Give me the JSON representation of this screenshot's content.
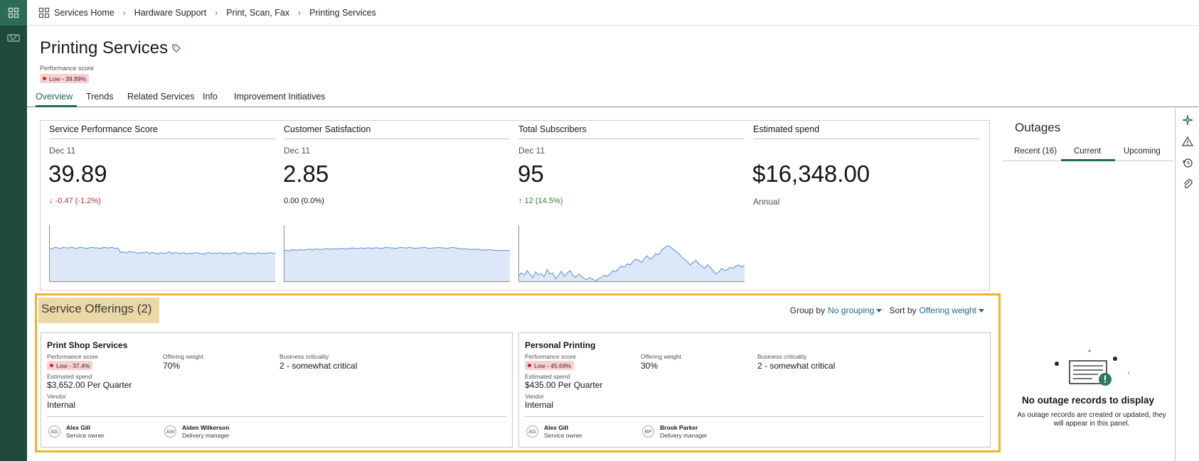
{
  "breadcrumb": {
    "items": [
      "Services Home",
      "Hardware Support",
      "Print, Scan, Fax",
      "Printing Services"
    ]
  },
  "header": {
    "title": "Printing Services",
    "performance_label": "Performance score",
    "performance_badge": "Low - 39.89%"
  },
  "tabs": [
    "Overview",
    "Trends",
    "Related Services",
    "Info",
    "Improvement Initiatives"
  ],
  "metrics": [
    {
      "title": "Service Performance Score",
      "date": "Dec 11",
      "value": "39.89",
      "delta": "↓ -0.47 (-1.2%)"
    },
    {
      "title": "Customer Satisfaction",
      "date": "Dec 11",
      "value": "2.85",
      "delta": "0.00 (0.0%)"
    },
    {
      "title": "Total Subscribers",
      "date": "Dec 11",
      "value": "95",
      "delta": "↑ 12 (14.5%)"
    },
    {
      "title": "Estimated spend",
      "date": "",
      "value": "$16,348.00",
      "delta": "Annual"
    }
  ],
  "offerings": {
    "title": "Service Offerings (2)",
    "group_by_label": "Group by",
    "group_by_value": "No grouping",
    "sort_by_label": "Sort by",
    "sort_by_value": "Offering weight",
    "cards": [
      {
        "name": "Print Shop Services",
        "perf_label": "Performance score",
        "perf_badge": "Low - 37.4%",
        "weight_label": "Offering weight",
        "weight": "70%",
        "criticality_label": "Business criticality",
        "criticality": "2 - somewhat critical",
        "spend_label": "Estimated spend",
        "spend": "$3,652.00 Per Quarter",
        "vendor_label": "Vendor",
        "vendor": "Internal",
        "people": [
          {
            "initials": "AG",
            "name": "Alex Gill",
            "role": "Service owner"
          },
          {
            "initials": "AW",
            "name": "Aiden Wilkerson",
            "role": "Delivery manager"
          }
        ]
      },
      {
        "name": "Personal Printing",
        "perf_label": "Performance score",
        "perf_badge": "Low - 45.69%",
        "weight_label": "Offering weight",
        "weight": "30%",
        "criticality_label": "Business criticality",
        "criticality": "2 - somewhat critical",
        "spend_label": "Estimated spend",
        "spend": "$435.00 Per Quarter",
        "vendor_label": "Vendor",
        "vendor": "Internal",
        "people": [
          {
            "initials": "AG",
            "name": "Alex Gill",
            "role": "Service owner"
          },
          {
            "initials": "BP",
            "name": "Brook Parker",
            "role": "Delivery manager"
          }
        ]
      }
    ]
  },
  "outages": {
    "title": "Outages",
    "tabs": [
      "Recent (16)",
      "Current",
      "Upcoming"
    ],
    "active_tab": "Current",
    "empty_title": "No outage records to display",
    "empty_desc": "As outage records are created or updated, they will appear in this panel."
  },
  "colors": {
    "rail": "#1f4a3b",
    "accent": "#1f6b52",
    "link": "#1f6b8a",
    "badge_bg": "#f6d2d2",
    "highlight_border": "#f0b429",
    "spark_fill": "#dce8f7",
    "spark_line": "#5b8fd6"
  },
  "sparklines": [
    [
      60,
      58,
      61,
      60,
      59,
      61,
      60,
      60,
      62,
      59,
      60,
      61,
      60,
      59,
      60,
      61,
      60,
      60,
      59,
      61,
      60,
      60,
      61,
      59,
      60,
      52,
      53,
      51,
      54,
      52,
      53,
      50,
      52,
      51,
      53,
      50,
      52,
      51,
      49,
      52,
      50,
      51,
      53,
      50,
      52,
      51,
      50,
      52,
      49,
      51,
      50,
      52,
      51,
      50,
      49,
      51,
      52,
      50,
      51,
      50,
      52,
      49,
      51,
      50,
      51,
      52,
      49,
      50,
      52,
      51,
      50,
      51,
      49,
      52,
      50,
      51,
      50,
      52,
      51,
      50
    ],
    [
      55,
      56,
      55,
      57,
      56,
      56,
      57,
      56,
      57,
      58,
      57,
      58,
      58,
      57,
      58,
      59,
      58,
      58,
      59,
      58,
      59,
      59,
      58,
      59,
      60,
      59,
      59,
      60,
      59,
      60,
      60,
      59,
      60,
      60,
      59,
      60,
      61,
      60,
      60,
      59,
      60,
      61,
      60,
      60,
      61,
      60,
      59,
      60,
      60,
      61,
      60,
      59,
      60,
      60,
      61,
      60,
      60,
      59,
      60,
      61,
      60,
      59,
      58,
      59,
      58,
      57,
      58,
      57,
      58,
      56,
      57,
      56,
      57,
      56,
      56,
      55,
      56,
      55,
      56,
      55
    ],
    [
      10,
      16,
      12,
      20,
      14,
      8,
      18,
      12,
      15,
      9,
      22,
      14,
      16,
      6,
      12,
      19,
      10,
      16,
      20,
      12,
      8,
      14,
      10,
      6,
      4,
      8,
      5,
      2,
      6,
      8,
      12,
      10,
      14,
      20,
      18,
      24,
      28,
      26,
      32,
      30,
      36,
      40,
      38,
      34,
      42,
      46,
      40,
      44,
      50,
      48,
      56,
      60,
      64,
      62,
      58,
      54,
      50,
      44,
      40,
      36,
      30,
      34,
      38,
      32,
      28,
      24,
      30,
      26,
      20,
      14,
      18,
      24,
      20,
      22,
      26,
      24,
      28,
      30,
      26,
      30
    ]
  ]
}
